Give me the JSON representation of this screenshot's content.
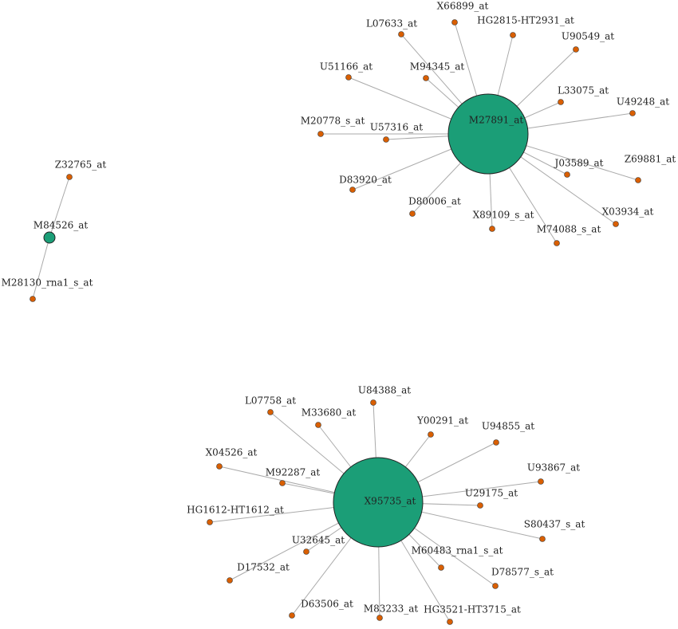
{
  "groups": [
    {
      "hub": "M27891_at",
      "leaves": [
        "X66899_at",
        "HG2815-HT2931_at",
        "U90549_at",
        "L07633_at",
        "M94345_at",
        "U51166_at",
        "L33075_at",
        "U49248_at",
        "M20778_s_at",
        "U57316_at",
        "J03589_at",
        "Z69881_at",
        "D83920_at",
        "D80006_at",
        "X03934_at",
        "X89109_s_at",
        "M74088_s_at"
      ]
    },
    {
      "hub": "M84526_at",
      "leaves": [
        "Z32765_at",
        "M28130_rna1_s_at"
      ]
    },
    {
      "hub": "X95735_at",
      "leaves": [
        "U84388_at",
        "L07758_at",
        "M33680_at",
        "Y00291_at",
        "U94855_at",
        "X04526_at",
        "M92287_at",
        "U93867_at",
        "U29175_at",
        "HG1612-HT1612_at",
        "S80437_s_at",
        "U32645_at",
        "M60483_rna1_s_at",
        "D17532_at",
        "D78577_s_at",
        "D63506_at",
        "M83233_at",
        "HG3521-HT3715_at"
      ]
    }
  ]
}
